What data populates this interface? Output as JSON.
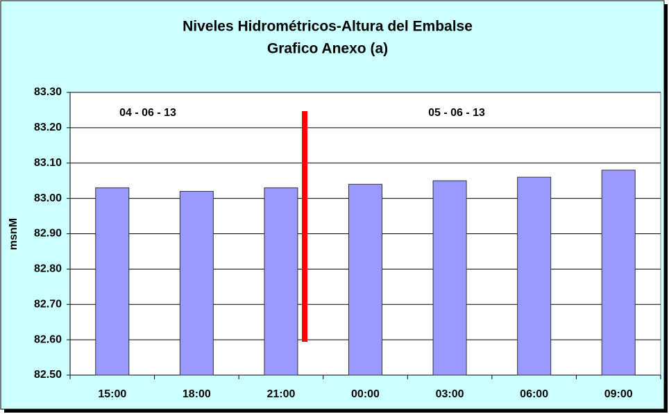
{
  "chart_data": {
    "type": "bar",
    "title": "Niveles Hidrométricos-Altura del Embalse",
    "subtitle": "Grafico Anexo (a)",
    "y_label": "msnM",
    "annotations": [
      "04 - 06 - 13",
      "05 - 06 - 13"
    ],
    "categories": [
      "15:00",
      "18:00",
      "21:00",
      "00:00",
      "03:00",
      "06:00",
      "09:00"
    ],
    "values": [
      83.03,
      83.02,
      83.03,
      83.04,
      83.05,
      83.06,
      83.08
    ],
    "color": "#9999ff",
    "ylim": [
      82.5,
      83.3
    ],
    "yticks": [
      {
        "value": 82.5,
        "label": "82.50"
      },
      {
        "value": 82.6,
        "label": "82.60"
      },
      {
        "value": 82.7,
        "label": "82.70"
      },
      {
        "value": 82.8,
        "label": "82.80"
      },
      {
        "value": 82.9,
        "label": "82.90"
      },
      {
        "value": 83,
        "label": "83.00"
      },
      {
        "value": 83.1,
        "label": "83.10"
      },
      {
        "value": 83.2,
        "label": "83.20"
      },
      {
        "value": 83.3,
        "label": "83.30"
      }
    ],
    "grid": true
  }
}
